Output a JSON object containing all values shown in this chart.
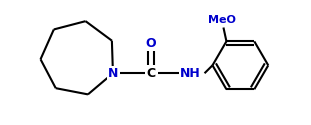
{
  "bg_color": "#ffffff",
  "line_color": "#000000",
  "atom_color_N": "#0000cc",
  "atom_color_O": "#0000cc",
  "font_size_atom": 9,
  "font_size_meo": 8,
  "bond_width": 1.5,
  "fig_width": 3.11,
  "fig_height": 1.25,
  "xlim": [
    0,
    311
  ],
  "ylim": [
    0,
    125
  ]
}
